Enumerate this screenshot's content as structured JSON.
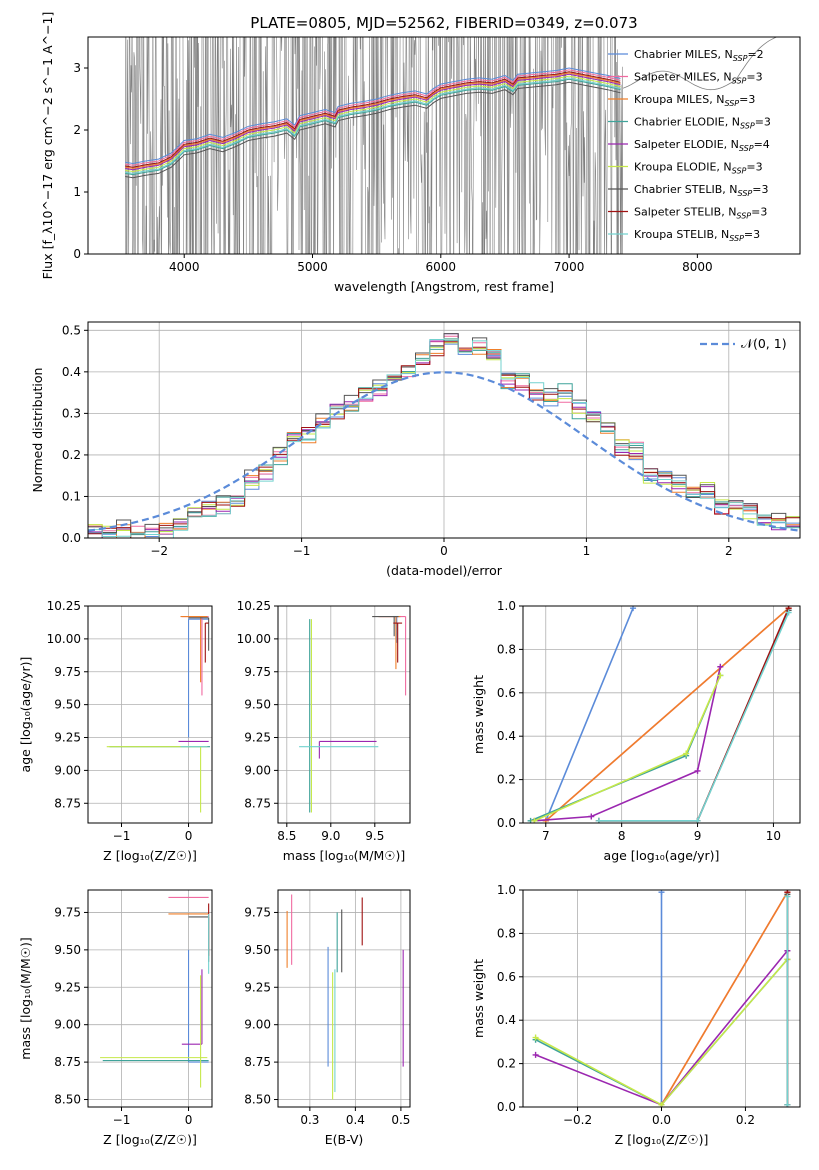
{
  "colors": {
    "chabrier_miles": "#5b8bd9",
    "salpeter_miles": "#f06aa0",
    "kroupa_miles": "#ef7f2a",
    "chabrier_elodie": "#3fa39a",
    "salpeter_elodie": "#9b27b0",
    "kroupa_elodie": "#c6e84a",
    "chabrier_stelib": "#555555",
    "salpeter_stelib": "#9e1111",
    "kroupa_stelib": "#73d2cf",
    "data": "#808080",
    "normal": "#5b8bd9"
  },
  "chart_data": [
    {
      "id": "spectrum",
      "type": "line",
      "title": "PLATE=0805, MJD=52562, FIBERID=0349, z=0.073",
      "xlabel": "wavelength [Angstrom, rest frame]",
      "ylabel": "Flux [f_λ10^−17 erg cm^−2 s^−1 A^−1]",
      "xlim": [
        3250,
        8800
      ],
      "ylim": [
        0,
        3.5
      ],
      "xticks": [
        4000,
        5000,
        6000,
        7000,
        8000
      ],
      "yticks": [
        0,
        1,
        2,
        3
      ],
      "legend_position": "right",
      "legend": [
        {
          "key": "chabrier_miles",
          "label": "Chabrier MILES, N",
          "sub": "SSP",
          "tail": "=2"
        },
        {
          "key": "salpeter_miles",
          "label": "Salpeter MILES, N",
          "sub": "SSP",
          "tail": "=3"
        },
        {
          "key": "kroupa_miles",
          "label": "Kroupa MILES, N",
          "sub": "SSP",
          "tail": "=3"
        },
        {
          "key": "chabrier_elodie",
          "label": "Chabrier ELODIE, N",
          "sub": "SSP",
          "tail": "=3"
        },
        {
          "key": "salpeter_elodie",
          "label": "Salpeter ELODIE, N",
          "sub": "SSP",
          "tail": "=4"
        },
        {
          "key": "kroupa_elodie",
          "label": "Kroupa ELODIE, N",
          "sub": "SSP",
          "tail": "=3"
        },
        {
          "key": "chabrier_stelib",
          "label": "Chabrier STELIB, N",
          "sub": "SSP",
          "tail": "=3"
        },
        {
          "key": "salpeter_stelib",
          "label": "Salpeter STELIB, N",
          "sub": "SSP",
          "tail": "=3"
        },
        {
          "key": "kroupa_stelib",
          "label": "Kroupa STELIB, N",
          "sub": "SSP",
          "tail": "=3"
        }
      ],
      "model_curve": {
        "x": [
          3540,
          3600,
          3700,
          3800,
          3850,
          3900,
          3950,
          4000,
          4100,
          4200,
          4300,
          4400,
          4500,
          4600,
          4700,
          4800,
          4861,
          4900,
          5000,
          5100,
          5175,
          5200,
          5300,
          5400,
          5500,
          5600,
          5700,
          5800,
          5890,
          5950,
          6000,
          6100,
          6200,
          6300,
          6400,
          6500,
          6563,
          6600,
          6700,
          6800,
          6900,
          7000,
          7100,
          7200,
          7300,
          7400
        ],
        "y": [
          1.4,
          1.38,
          1.42,
          1.45,
          1.5,
          1.55,
          1.65,
          1.75,
          1.78,
          1.85,
          1.8,
          1.88,
          1.98,
          2.02,
          2.05,
          2.1,
          2.0,
          2.15,
          2.2,
          2.25,
          2.2,
          2.3,
          2.35,
          2.38,
          2.42,
          2.48,
          2.52,
          2.55,
          2.5,
          2.6,
          2.66,
          2.7,
          2.74,
          2.76,
          2.74,
          2.8,
          2.72,
          2.82,
          2.84,
          2.86,
          2.88,
          2.92,
          2.88,
          2.84,
          2.8,
          2.75
        ]
      },
      "model_offsets": [
        0.08,
        0.05,
        0.0,
        -0.1,
        -0.02,
        -0.05,
        -0.15,
        0.02,
        -0.08
      ]
    },
    {
      "id": "residuals",
      "type": "histogram",
      "xlabel": "(data-model)/error",
      "ylabel": "Normed distribution",
      "xlim": [
        -2.5,
        2.5
      ],
      "ylim": [
        0,
        0.52
      ],
      "xticks": [
        -2,
        -1,
        0,
        1,
        2
      ],
      "yticks": [
        0.0,
        0.1,
        0.2,
        0.3,
        0.4,
        0.5
      ],
      "legend_position": "top-right",
      "normal_label": "𝒩(0, 1)",
      "bin_width": 0.1,
      "base_values": [
        0.01,
        0.01,
        0.02,
        0.01,
        0.01,
        0.02,
        0.03,
        0.05,
        0.07,
        0.08,
        0.1,
        0.14,
        0.16,
        0.2,
        0.23,
        0.25,
        0.28,
        0.31,
        0.32,
        0.35,
        0.36,
        0.38,
        0.4,
        0.43,
        0.46,
        0.47,
        0.45,
        0.46,
        0.43,
        0.38,
        0.38,
        0.35,
        0.34,
        0.35,
        0.31,
        0.28,
        0.26,
        0.22,
        0.21,
        0.15,
        0.15,
        0.13,
        0.1,
        0.11,
        0.08,
        0.08,
        0.07,
        0.05,
        0.04,
        0.03
      ]
    },
    {
      "id": "age_vs_z",
      "type": "errorbar",
      "xlabel": "Z [log₁₀(Z/Z☉)]",
      "ylabel": "age  [log₁₀(age/yr)]",
      "xlim": [
        -1.5,
        0.35
      ],
      "ylim": [
        8.6,
        10.25
      ],
      "xticks": [
        -1,
        0
      ],
      "yticks": [
        8.75,
        9.0,
        9.25,
        9.5,
        9.75,
        10.0,
        10.25
      ],
      "points": [
        {
          "key": "chabrier_miles",
          "x": 0.0,
          "xerr": [
            0.0,
            0.3
          ],
          "y": 10.15,
          "yerr": [
            0.9,
            0.0
          ]
        },
        {
          "key": "salpeter_miles",
          "x": 0.2,
          "xerr": [
            0.3,
            0.1
          ],
          "y": 10.17,
          "yerr": [
            0.6,
            0.0
          ]
        },
        {
          "key": "kroupa_miles",
          "x": 0.18,
          "xerr": [
            0.3,
            0.1
          ],
          "y": 10.17,
          "yerr": [
            0.5,
            0.0
          ]
        },
        {
          "key": "chabrier_elodie",
          "x": 0.22,
          "xerr": [
            1.4,
            0.1
          ],
          "y": 9.18,
          "yerr": [
            0.0,
            0.0
          ]
        },
        {
          "key": "salpeter_elodie",
          "x": 0.2,
          "xerr": [
            0.35,
            0.1
          ],
          "y": 9.22,
          "yerr": [
            0.0,
            0.0
          ]
        },
        {
          "key": "kroupa_elodie",
          "x": 0.18,
          "xerr": [
            1.4,
            0.1
          ],
          "y": 9.18,
          "yerr": [
            0.5,
            0.0
          ]
        },
        {
          "key": "chabrier_stelib",
          "x": 0.3,
          "xerr": [
            0.3,
            0.0
          ],
          "y": 10.16,
          "yerr": [
            0.25,
            0.0
          ]
        },
        {
          "key": "salpeter_stelib",
          "x": 0.25,
          "xerr": [
            0.0,
            0.05
          ],
          "y": 10.12,
          "yerr": [
            0.3,
            0.0
          ]
        },
        {
          "key": "kroupa_stelib",
          "x": 0.28,
          "xerr": [
            0.4,
            0.0
          ],
          "y": 9.18,
          "yerr": [
            0.0,
            0.0
          ]
        }
      ]
    },
    {
      "id": "age_vs_mass",
      "type": "errorbar",
      "xlabel": "mass [log₁₀(M/M☉)]",
      "ylabel": "",
      "xlim": [
        8.4,
        9.9
      ],
      "ylim": [
        8.6,
        10.25
      ],
      "xticks": [
        8.5,
        9.0,
        9.5
      ],
      "yticks": [
        8.75,
        9.0,
        9.25,
        9.5,
        9.75,
        10.0,
        10.25
      ],
      "points": [
        {
          "key": "chabrier_miles",
          "x": 9.75,
          "xerr": [
            0.05,
            0.05
          ],
          "y": 10.17,
          "yerr": [
            0.2,
            0.0
          ]
        },
        {
          "key": "salpeter_miles",
          "x": 9.85,
          "xerr": [
            0.3,
            0.0
          ],
          "y": 10.17,
          "yerr": [
            0.6,
            0.0
          ]
        },
        {
          "key": "kroupa_miles",
          "x": 9.74,
          "xerr": [
            0.2,
            0.05
          ],
          "y": 10.17,
          "yerr": [
            0.4,
            0.0
          ]
        },
        {
          "key": "chabrier_elodie",
          "x": 8.76,
          "xerr": [
            0.0,
            0.0
          ],
          "y": 9.18,
          "yerr": [
            0.5,
            0.97
          ]
        },
        {
          "key": "salpeter_elodie",
          "x": 8.87,
          "xerr": [
            0.0,
            0.65
          ],
          "y": 9.22,
          "yerr": [
            0.13,
            0.0
          ]
        },
        {
          "key": "kroupa_elodie",
          "x": 8.78,
          "xerr": [
            0.0,
            0.0
          ],
          "y": 9.18,
          "yerr": [
            0.5,
            0.97
          ]
        },
        {
          "key": "chabrier_stelib",
          "x": 9.72,
          "xerr": [
            0.25,
            0.05
          ],
          "y": 10.17,
          "yerr": [
            0.15,
            0.0
          ]
        },
        {
          "key": "salpeter_stelib",
          "x": 9.76,
          "xerr": [
            0.05,
            0.05
          ],
          "y": 10.12,
          "yerr": [
            0.3,
            0.0
          ]
        },
        {
          "key": "kroupa_stelib",
          "x": 8.74,
          "xerr": [
            0.1,
            0.8
          ],
          "y": 9.18,
          "yerr": [
            0.0,
            0.0
          ]
        }
      ]
    },
    {
      "id": "weight_vs_age",
      "type": "line",
      "xlabel": "age  [log₁₀(age/yr)]",
      "ylabel": "mass weight",
      "xlim": [
        6.7,
        10.35
      ],
      "ylim": [
        0,
        1.0
      ],
      "xticks": [
        7,
        8,
        9,
        10
      ],
      "yticks": [
        0.0,
        0.2,
        0.4,
        0.6,
        0.8,
        1.0
      ],
      "series": [
        {
          "key": "chabrier_miles",
          "x": [
            7.0,
            8.15
          ],
          "y": [
            0.01,
            0.99
          ]
        },
        {
          "key": "salpeter_miles",
          "x": [
            7.0,
            10.2
          ],
          "y": [
            0.01,
            0.99
          ]
        },
        {
          "key": "kroupa_miles",
          "x": [
            7.0,
            10.2
          ],
          "y": [
            0.01,
            0.99
          ]
        },
        {
          "key": "chabrier_elodie",
          "x": [
            6.8,
            8.85,
            9.3
          ],
          "y": [
            0.01,
            0.31,
            0.68
          ]
        },
        {
          "key": "salpeter_elodie",
          "x": [
            6.85,
            7.6,
            9.0,
            9.3
          ],
          "y": [
            0.01,
            0.03,
            0.24,
            0.72
          ]
        },
        {
          "key": "kroupa_elodie",
          "x": [
            6.85,
            8.85,
            9.3
          ],
          "y": [
            0.01,
            0.32,
            0.68
          ]
        },
        {
          "key": "chabrier_stelib",
          "x": [
            7.7,
            9.0,
            10.2
          ],
          "y": [
            0.01,
            0.01,
            0.98
          ]
        },
        {
          "key": "salpeter_stelib",
          "x": [
            7.7,
            9.0,
            10.2
          ],
          "y": [
            0.01,
            0.01,
            0.99
          ]
        },
        {
          "key": "kroupa_stelib",
          "x": [
            7.7,
            9.0,
            10.2
          ],
          "y": [
            0.01,
            0.01,
            0.97
          ]
        }
      ]
    },
    {
      "id": "mass_vs_z",
      "type": "errorbar",
      "xlabel": "Z [log₁₀(Z/Z☉)]",
      "ylabel": "mass [log₁₀(M/M☉)]",
      "xlim": [
        -1.5,
        0.35
      ],
      "ylim": [
        8.45,
        9.9
      ],
      "xticks": [
        -1,
        0
      ],
      "yticks": [
        8.5,
        8.75,
        9.0,
        9.25,
        9.5,
        9.75
      ],
      "points": [
        {
          "key": "chabrier_miles",
          "x": 0.0,
          "xerr": [
            0.0,
            0.3
          ],
          "y": 8.75,
          "yerr": [
            0.0,
            0.75
          ]
        },
        {
          "key": "salpeter_miles",
          "x": -0.3,
          "xerr": [
            0.0,
            0.6
          ],
          "y": 9.85,
          "yerr": [
            0.0,
            0.0
          ]
        },
        {
          "key": "kroupa_miles",
          "x": -0.3,
          "xerr": [
            0.0,
            0.6
          ],
          "y": 9.74,
          "yerr": [
            0.0,
            0.0
          ]
        },
        {
          "key": "chabrier_elodie",
          "x": 0.22,
          "xerr": [
            1.5,
            0.08
          ],
          "y": 8.76,
          "yerr": [
            0.0,
            0.0
          ]
        },
        {
          "key": "salpeter_elodie",
          "x": 0.2,
          "xerr": [
            0.3,
            0.0
          ],
          "y": 8.87,
          "yerr": [
            0.0,
            0.5
          ]
        },
        {
          "key": "kroupa_elodie",
          "x": 0.18,
          "xerr": [
            1.5,
            0.1
          ],
          "y": 8.78,
          "yerr": [
            0.2,
            0.55
          ]
        },
        {
          "key": "chabrier_stelib",
          "x": 0.3,
          "xerr": [
            0.3,
            0.0
          ],
          "y": 9.72,
          "yerr": [
            0.3,
            0.0
          ]
        },
        {
          "key": "salpeter_stelib",
          "x": 0.3,
          "xerr": [
            0.0,
            0.0
          ],
          "y": 9.76,
          "yerr": [
            0.3,
            0.05
          ]
        },
        {
          "key": "kroupa_stelib",
          "x": 0.3,
          "xerr": [
            0.0,
            0.0
          ],
          "y": 9.74,
          "yerr": [
            0.4,
            0.0
          ]
        }
      ]
    },
    {
      "id": "mass_vs_ebv",
      "type": "errorbar",
      "xlabel": "E(B-V)",
      "ylabel": "",
      "xlim": [
        0.23,
        0.52
      ],
      "ylim": [
        8.45,
        9.9
      ],
      "xticks": [
        0.3,
        0.4,
        0.5
      ],
      "yticks": [
        8.5,
        8.75,
        9.0,
        9.25,
        9.5,
        9.75
      ],
      "points": [
        {
          "key": "chabrier_miles",
          "x": 0.34,
          "xerr": [
            0.0,
            0.0
          ],
          "y": 9.1,
          "yerr": [
            0.38,
            0.42
          ]
        },
        {
          "key": "salpeter_miles",
          "x": 0.26,
          "xerr": [
            0.0,
            0.0
          ],
          "y": 9.65,
          "yerr": [
            0.25,
            0.22
          ]
        },
        {
          "key": "kroupa_miles",
          "x": 0.25,
          "xerr": [
            0.0,
            0.0
          ],
          "y": 9.58,
          "yerr": [
            0.2,
            0.18
          ]
        },
        {
          "key": "chabrier_elodie",
          "x": 0.36,
          "xerr": [
            0.0,
            0.0
          ],
          "y": 9.55,
          "yerr": [
            0.2,
            0.2
          ]
        },
        {
          "key": "salpeter_elodie",
          "x": 0.505,
          "xerr": [
            0.0,
            0.0
          ],
          "y": 9.1,
          "yerr": [
            0.38,
            0.4
          ]
        },
        {
          "key": "kroupa_elodie",
          "x": 0.35,
          "xerr": [
            0.0,
            0.0
          ],
          "y": 8.9,
          "yerr": [
            0.4,
            0.45
          ]
        },
        {
          "key": "chabrier_stelib",
          "x": 0.37,
          "xerr": [
            0.0,
            0.0
          ],
          "y": 9.55,
          "yerr": [
            0.2,
            0.22
          ]
        },
        {
          "key": "salpeter_stelib",
          "x": 0.415,
          "xerr": [
            0.0,
            0.0
          ],
          "y": 9.65,
          "yerr": [
            0.12,
            0.2
          ]
        },
        {
          "key": "kroupa_stelib",
          "x": 0.355,
          "xerr": [
            0.0,
            0.0
          ],
          "y": 8.95,
          "yerr": [
            0.4,
            0.42
          ]
        }
      ]
    },
    {
      "id": "weight_vs_z",
      "type": "line",
      "xlabel": "Z [log₁₀(Z/Z☉)]",
      "ylabel": "mass weight",
      "xlim": [
        -0.33,
        0.33
      ],
      "ylim": [
        0,
        1.0
      ],
      "xticks": [
        -0.2,
        0.0,
        0.2
      ],
      "yticks": [
        0.0,
        0.2,
        0.4,
        0.6,
        0.8,
        1.0
      ],
      "series": [
        {
          "key": "chabrier_miles",
          "x": [
            0.0,
            0.0
          ],
          "y": [
            0.01,
            0.99
          ]
        },
        {
          "key": "salpeter_miles",
          "x": [
            0.0,
            0.3
          ],
          "y": [
            0.01,
            0.99
          ]
        },
        {
          "key": "kroupa_miles",
          "x": [
            0.0,
            0.3
          ],
          "y": [
            0.01,
            0.99
          ]
        },
        {
          "key": "chabrier_elodie",
          "x": [
            -0.3,
            0.0,
            0.3
          ],
          "y": [
            0.31,
            0.01,
            0.68
          ]
        },
        {
          "key": "salpeter_elodie",
          "x": [
            -0.3,
            0.0,
            0.3
          ],
          "y": [
            0.24,
            0.01,
            0.72
          ]
        },
        {
          "key": "kroupa_elodie",
          "x": [
            -0.3,
            0.0,
            0.3
          ],
          "y": [
            0.32,
            0.01,
            0.68
          ]
        },
        {
          "key": "chabrier_stelib",
          "x": [
            0.3,
            0.3
          ],
          "y": [
            0.01,
            0.98
          ]
        },
        {
          "key": "salpeter_stelib",
          "x": [
            0.3,
            0.3
          ],
          "y": [
            0.01,
            0.99
          ]
        },
        {
          "key": "kroupa_stelib",
          "x": [
            0.3,
            0.3
          ],
          "y": [
            0.01,
            0.97
          ]
        }
      ]
    }
  ]
}
